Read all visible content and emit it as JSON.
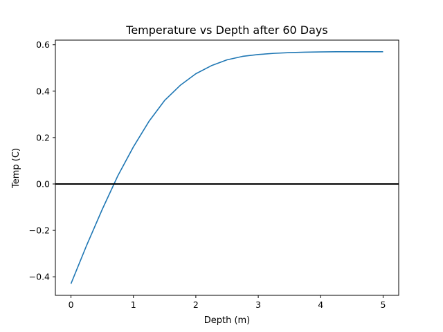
{
  "chart_data": {
    "type": "line",
    "title": "Temperature vs Depth after 60 Days",
    "xlabel": "Depth (m)",
    "ylabel": "Temp (C)",
    "xlim": [
      -0.25,
      5.25
    ],
    "ylim": [
      -0.48,
      0.62
    ],
    "xticks": [
      0,
      1,
      2,
      3,
      4,
      5
    ],
    "xtick_labels": [
      "0",
      "1",
      "2",
      "3",
      "4",
      "5"
    ],
    "yticks": [
      -0.4,
      -0.2,
      0.0,
      0.2,
      0.4,
      0.6
    ],
    "ytick_labels": [
      "−0.4",
      "−0.2",
      "0.0",
      "0.2",
      "0.4",
      "0.6"
    ],
    "grid": false,
    "reference_line": {
      "y": 0.0,
      "color": "#000000"
    },
    "series": [
      {
        "color": "#1f77b4",
        "x": [
          0.0,
          0.25,
          0.5,
          0.75,
          1.0,
          1.25,
          1.5,
          1.75,
          2.0,
          2.25,
          2.5,
          2.75,
          3.0,
          3.25,
          3.5,
          3.75,
          4.0,
          4.25,
          4.5,
          4.75,
          5.0
        ],
        "y": [
          -0.43,
          -0.265,
          -0.11,
          0.035,
          0.16,
          0.27,
          0.36,
          0.425,
          0.475,
          0.51,
          0.535,
          0.55,
          0.558,
          0.563,
          0.566,
          0.568,
          0.569,
          0.57,
          0.57,
          0.57,
          0.57
        ]
      }
    ]
  }
}
